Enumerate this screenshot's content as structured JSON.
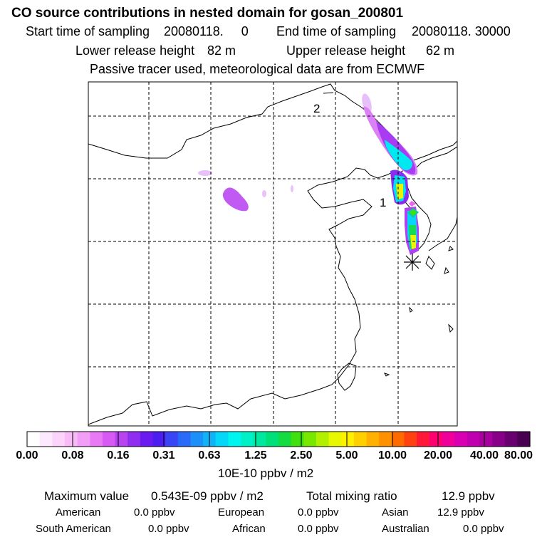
{
  "header": {
    "title": "CO  source contributions in nested domain for gosan_200801",
    "start_label": "Start time of sampling",
    "start_value": "20080118.     0",
    "end_label": "End time of sampling",
    "end_value": "20080118. 30000",
    "lower_label": "Lower release height",
    "lower_value": "82 m",
    "upper_label": "Upper release height",
    "upper_value": "62 m",
    "tracer_line": "Passive tracer used, meteorological data are from ECMWF"
  },
  "map": {
    "label_1": "1",
    "label_2": "2",
    "marker": "receptor-star-icon"
  },
  "colorbar": {
    "units": "10E-10 ppbv / m2",
    "ticks": [
      "0.00",
      "0.08",
      "0.16",
      "0.31",
      "0.63",
      "1.25",
      "2.50",
      "5.00",
      "10.00",
      "20.00",
      "40.00",
      "80.00"
    ],
    "colors": [
      "#ffffff",
      "#fde9fd",
      "#fbd3fb",
      "#f8bbf8",
      "#f29ef6",
      "#e97af5",
      "#d65af3",
      "#b844f0",
      "#8f2df0",
      "#6a1cf0",
      "#4b1ff0",
      "#3a45f5",
      "#2a6af8",
      "#1c8ff8",
      "#10b3f8",
      "#06d6f8",
      "#00f5f0",
      "#00f0c8",
      "#00e8a0",
      "#00e078",
      "#14dc40",
      "#40e010",
      "#78e800",
      "#b0f000",
      "#e8f800",
      "#fff000",
      "#ffd000",
      "#ffb000",
      "#ff9000",
      "#ff6a00",
      "#ff4010",
      "#ff1838",
      "#ff0070",
      "#f0009a",
      "#d800b0",
      "#c000b0",
      "#a8009c",
      "#880088",
      "#680070",
      "#480050"
    ]
  },
  "footer": {
    "max_label": "Maximum value",
    "max_value": "0.543E-09 ppbv / m2",
    "total_label": "Total mixing ratio",
    "total_value": "12.9 ppbv",
    "american_label": "American",
    "american_value": "0.0 ppbv",
    "european_label": "European",
    "european_value": "0.0 ppbv",
    "asian_label": "Asian",
    "asian_value": "12.9 ppbv",
    "south_american_label": "South American",
    "south_american_value": "0.0 ppbv",
    "african_label": "African",
    "african_value": "0.0 ppbv",
    "australian_label": "Australian",
    "australian_value": "0.0 ppbv"
  }
}
